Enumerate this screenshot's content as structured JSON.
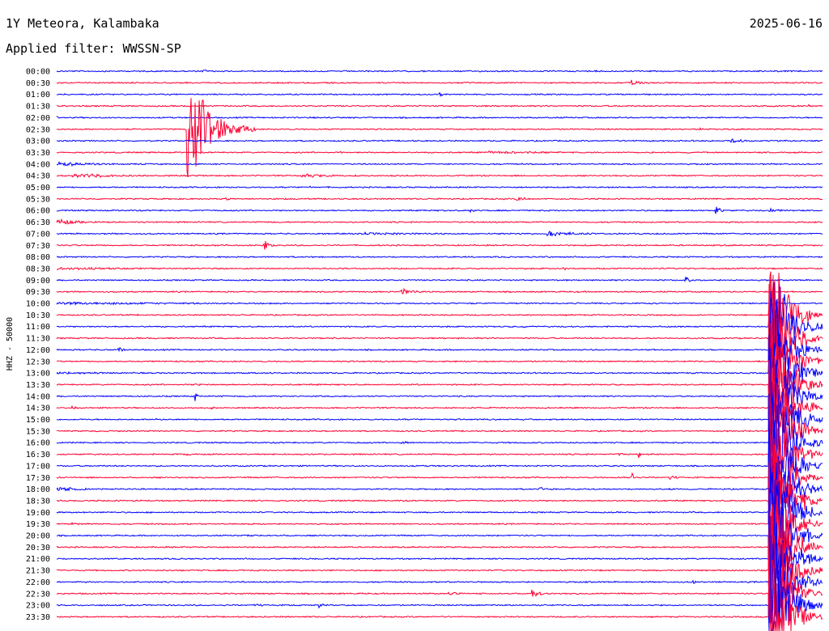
{
  "header": {
    "station": "1Y Meteora, Kalambaka",
    "date": "2025-06-16",
    "filter": "Applied filter: WWSSN-SP"
  },
  "chart_data": {
    "type": "line",
    "title": "1Y Meteora, Kalambaka",
    "subtitle": "Applied filter: WWSSN-SP",
    "ylabel": "HHZ - 50000",
    "colors": [
      "#0000ff",
      "#ff0033"
    ],
    "grid": false,
    "y_tick_labels": [
      "00:00",
      "00:30",
      "01:00",
      "01:30",
      "02:00",
      "02:30",
      "03:00",
      "03:30",
      "04:00",
      "04:30",
      "05:00",
      "05:30",
      "06:00",
      "06:30",
      "07:00",
      "07:30",
      "08:00",
      "08:30",
      "09:00",
      "09:30",
      "10:00",
      "10:30",
      "11:00",
      "11:30",
      "12:00",
      "12:30",
      "13:00",
      "13:30",
      "14:00",
      "14:30",
      "15:00",
      "15:30",
      "16:00",
      "16:30",
      "17:00",
      "17:30",
      "18:00",
      "18:30",
      "19:00",
      "19:30",
      "20:00",
      "20:30",
      "21:00",
      "21:30",
      "22:00",
      "22:30",
      "23:00",
      "23:30"
    ],
    "rows": [
      {
        "label": "00:00",
        "color": "#0000ff",
        "events": [
          {
            "x": 0.19,
            "amp": 3,
            "dur": 0.03
          },
          {
            "x": 0.7,
            "amp": 1.5,
            "dur": 0.1
          }
        ]
      },
      {
        "label": "00:30",
        "color": "#ff0033",
        "events": [
          {
            "x": 0.75,
            "amp": 4,
            "dur": 0.05
          },
          {
            "x": 0.34,
            "amp": 2,
            "dur": 0.01
          }
        ]
      },
      {
        "label": "01:00",
        "color": "#0000ff",
        "events": [
          {
            "x": 0.5,
            "amp": 6,
            "dur": 0.01
          },
          {
            "x": 0.23,
            "amp": 2,
            "dur": 0.01
          }
        ]
      },
      {
        "label": "01:30",
        "color": "#ff0033",
        "events": [
          {
            "x": 0.98,
            "amp": 4,
            "dur": 0.02
          }
        ]
      },
      {
        "label": "02:00",
        "color": "#0000ff",
        "events": [
          {
            "x": 0.0,
            "amp": 2,
            "dur": 0.02
          },
          {
            "x": 0.33,
            "amp": 1.5,
            "dur": 0.1
          }
        ]
      },
      {
        "label": "02:30",
        "color": "#ff0033",
        "events": [
          {
            "x": 0.17,
            "amp": 90,
            "dur": 0.09
          },
          {
            "x": 0.84,
            "amp": 2,
            "dur": 0.03
          }
        ]
      },
      {
        "label": "03:00",
        "color": "#0000ff",
        "events": [
          {
            "x": 0.88,
            "amp": 3,
            "dur": 0.09
          }
        ]
      },
      {
        "label": "03:30",
        "color": "#ff0033",
        "events": [
          {
            "x": 0.37,
            "amp": 4,
            "dur": 0.005
          },
          {
            "x": 0.56,
            "amp": 2,
            "dur": 0.44
          }
        ]
      },
      {
        "label": "04:00",
        "color": "#0000ff",
        "events": [
          {
            "x": 0.0,
            "amp": 3,
            "dur": 0.25
          }
        ]
      },
      {
        "label": "04:30",
        "color": "#ff0033",
        "events": [
          {
            "x": 0.02,
            "amp": 4,
            "dur": 0.2
          },
          {
            "x": 0.32,
            "amp": 3,
            "dur": 0.15
          }
        ]
      },
      {
        "label": "05:00",
        "color": "#0000ff",
        "events": [
          {
            "x": 0.33,
            "amp": 2,
            "dur": 0.01
          }
        ]
      },
      {
        "label": "05:30",
        "color": "#ff0033",
        "events": [
          {
            "x": 0.22,
            "amp": 2,
            "dur": 0.1
          },
          {
            "x": 0.6,
            "amp": 3,
            "dur": 0.06
          }
        ]
      },
      {
        "label": "06:00",
        "color": "#0000ff",
        "events": [
          {
            "x": 0.54,
            "amp": 3,
            "dur": 0.02
          },
          {
            "x": 0.86,
            "amp": 10,
            "dur": 0.02
          },
          {
            "x": 0.93,
            "amp": 3,
            "dur": 0.07
          }
        ]
      },
      {
        "label": "06:30",
        "color": "#ff0033",
        "events": [
          {
            "x": 0.0,
            "amp": 4,
            "dur": 0.14
          }
        ]
      },
      {
        "label": "07:00",
        "color": "#0000ff",
        "events": [
          {
            "x": 0.4,
            "amp": 2,
            "dur": 0.4
          },
          {
            "x": 0.64,
            "amp": 4,
            "dur": 0.15
          }
        ]
      },
      {
        "label": "07:30",
        "color": "#ff0033",
        "events": [
          {
            "x": 0.27,
            "amp": 12,
            "dur": 0.02
          }
        ]
      },
      {
        "label": "08:00",
        "color": "#0000ff",
        "events": [
          {
            "x": 0.33,
            "amp": 2,
            "dur": 0.05
          }
        ]
      },
      {
        "label": "08:30",
        "color": "#ff0033",
        "events": [
          {
            "x": 0.0,
            "amp": 2,
            "dur": 0.5
          },
          {
            "x": 0.66,
            "amp": 8,
            "dur": 0.01
          }
        ]
      },
      {
        "label": "09:00",
        "color": "#0000ff",
        "events": [
          {
            "x": 0.82,
            "amp": 7,
            "dur": 0.02
          }
        ]
      },
      {
        "label": "09:30",
        "color": "#ff0033",
        "events": [
          {
            "x": 0.45,
            "amp": 5,
            "dur": 0.06
          }
        ]
      },
      {
        "label": "10:00",
        "color": "#0000ff",
        "events": [
          {
            "x": 0.0,
            "amp": 2,
            "dur": 1.0
          },
          {
            "x": 0.93,
            "amp": 3,
            "dur": 0.07
          }
        ]
      },
      {
        "label": "10:30",
        "color": "#ff0033",
        "events": [
          {
            "x": 0.93,
            "amp": 120,
            "dur": 0.07
          },
          {
            "x": 0.96,
            "amp": 10,
            "dur": 0.04
          }
        ]
      },
      {
        "label": "11:00",
        "color": "#0000ff",
        "events": [
          {
            "x": 0.61,
            "amp": 2,
            "dur": 0.02
          },
          {
            "x": 0.93,
            "amp": 120,
            "dur": 0.07
          }
        ]
      },
      {
        "label": "11:30",
        "color": "#ff0033",
        "events": [
          {
            "x": 0.3,
            "amp": 2,
            "dur": 0.05
          },
          {
            "x": 0.93,
            "amp": 120,
            "dur": 0.07
          }
        ]
      },
      {
        "label": "12:00",
        "color": "#0000ff",
        "events": [
          {
            "x": 0.08,
            "amp": 7,
            "dur": 0.02
          },
          {
            "x": 0.93,
            "amp": 120,
            "dur": 0.07
          }
        ]
      },
      {
        "label": "12:30",
        "color": "#ff0033",
        "events": [
          {
            "x": 0.93,
            "amp": 120,
            "dur": 0.07
          }
        ]
      },
      {
        "label": "13:00",
        "color": "#0000ff",
        "events": [
          {
            "x": 0.0,
            "amp": 2,
            "dur": 0.3
          },
          {
            "x": 0.93,
            "amp": 120,
            "dur": 0.07
          }
        ]
      },
      {
        "label": "13:30",
        "color": "#ff0033",
        "events": [
          {
            "x": 0.18,
            "amp": 3,
            "dur": 0.03
          },
          {
            "x": 0.93,
            "amp": 120,
            "dur": 0.07
          }
        ]
      },
      {
        "label": "14:00",
        "color": "#0000ff",
        "events": [
          {
            "x": 0.18,
            "amp": 12,
            "dur": 0.01
          },
          {
            "x": 0.33,
            "amp": 2,
            "dur": 0.01
          },
          {
            "x": 0.93,
            "amp": 120,
            "dur": 0.07
          }
        ]
      },
      {
        "label": "14:30",
        "color": "#ff0033",
        "events": [
          {
            "x": 0.02,
            "amp": 3,
            "dur": 0.02
          },
          {
            "x": 0.2,
            "amp": 3,
            "dur": 0.02
          },
          {
            "x": 0.93,
            "amp": 120,
            "dur": 0.07
          }
        ]
      },
      {
        "label": "15:00",
        "color": "#0000ff",
        "events": [
          {
            "x": 0.13,
            "amp": 2,
            "dur": 0.03
          },
          {
            "x": 0.93,
            "amp": 120,
            "dur": 0.07
          }
        ]
      },
      {
        "label": "15:30",
        "color": "#ff0033",
        "events": [
          {
            "x": 0.93,
            "amp": 120,
            "dur": 0.07
          }
        ]
      },
      {
        "label": "16:00",
        "color": "#0000ff",
        "events": [
          {
            "x": 0.45,
            "amp": 5,
            "dur": 0.02
          },
          {
            "x": 0.93,
            "amp": 120,
            "dur": 0.07
          }
        ]
      },
      {
        "label": "16:30",
        "color": "#ff0033",
        "events": [
          {
            "x": 0.17,
            "amp": 2,
            "dur": 0.05
          },
          {
            "x": 0.73,
            "amp": 3,
            "dur": 0.05
          },
          {
            "x": 0.76,
            "amp": 14,
            "dur": 0.005
          },
          {
            "x": 0.93,
            "amp": 120,
            "dur": 0.07
          }
        ]
      },
      {
        "label": "17:00",
        "color": "#0000ff",
        "events": [
          {
            "x": 0.93,
            "amp": 120,
            "dur": 0.07
          }
        ]
      },
      {
        "label": "17:30",
        "color": "#ff0033",
        "events": [
          {
            "x": 0.75,
            "amp": 14,
            "dur": 0.01
          },
          {
            "x": 0.8,
            "amp": 3,
            "dur": 0.05
          },
          {
            "x": 0.93,
            "amp": 120,
            "dur": 0.07
          }
        ]
      },
      {
        "label": "18:00",
        "color": "#0000ff",
        "events": [
          {
            "x": 0.0,
            "amp": 4,
            "dur": 0.1
          },
          {
            "x": 0.035,
            "amp": 14,
            "dur": 0.005
          },
          {
            "x": 0.63,
            "amp": 4,
            "dur": 0.03
          },
          {
            "x": 0.8,
            "amp": 2,
            "dur": 0.03
          },
          {
            "x": 0.93,
            "amp": 120,
            "dur": 0.07
          }
        ]
      },
      {
        "label": "18:30",
        "color": "#ff0033",
        "events": [
          {
            "x": 0.93,
            "amp": 120,
            "dur": 0.07
          }
        ]
      },
      {
        "label": "19:00",
        "color": "#0000ff",
        "events": [
          {
            "x": 0.93,
            "amp": 120,
            "dur": 0.07
          }
        ]
      },
      {
        "label": "19:30",
        "color": "#ff0033",
        "events": [
          {
            "x": 0.02,
            "amp": 2,
            "dur": 0.05
          },
          {
            "x": 0.93,
            "amp": 120,
            "dur": 0.07
          }
        ]
      },
      {
        "label": "20:00",
        "color": "#0000ff",
        "events": [
          {
            "x": 0.25,
            "amp": 2,
            "dur": 0.02
          },
          {
            "x": 0.93,
            "amp": 120,
            "dur": 0.07
          }
        ]
      },
      {
        "label": "20:30",
        "color": "#ff0033",
        "events": [
          {
            "x": 0.93,
            "amp": 120,
            "dur": 0.07
          }
        ]
      },
      {
        "label": "21:00",
        "color": "#0000ff",
        "events": [
          {
            "x": 0.93,
            "amp": 120,
            "dur": 0.07
          }
        ]
      },
      {
        "label": "21:30",
        "color": "#ff0033",
        "events": [
          {
            "x": 0.23,
            "amp": 2,
            "dur": 0.03
          },
          {
            "x": 0.93,
            "amp": 120,
            "dur": 0.07
          }
        ]
      },
      {
        "label": "22:00",
        "color": "#0000ff",
        "events": [
          {
            "x": 0.83,
            "amp": 6,
            "dur": 0.015
          },
          {
            "x": 0.93,
            "amp": 120,
            "dur": 0.07
          }
        ]
      },
      {
        "label": "22:30",
        "color": "#ff0033",
        "events": [
          {
            "x": 0.51,
            "amp": 3,
            "dur": 0.05
          },
          {
            "x": 0.62,
            "amp": 8,
            "dur": 0.03
          },
          {
            "x": 0.93,
            "amp": 120,
            "dur": 0.07
          }
        ]
      },
      {
        "label": "23:00",
        "color": "#0000ff",
        "events": [
          {
            "x": 0.26,
            "amp": 2,
            "dur": 0.08
          },
          {
            "x": 0.34,
            "amp": 6,
            "dur": 0.02
          },
          {
            "x": 0.93,
            "amp": 120,
            "dur": 0.07
          }
        ]
      },
      {
        "label": "23:30",
        "color": "#ff0033",
        "events": [
          {
            "x": 0.93,
            "amp": 120,
            "dur": 0.07
          }
        ]
      }
    ]
  }
}
